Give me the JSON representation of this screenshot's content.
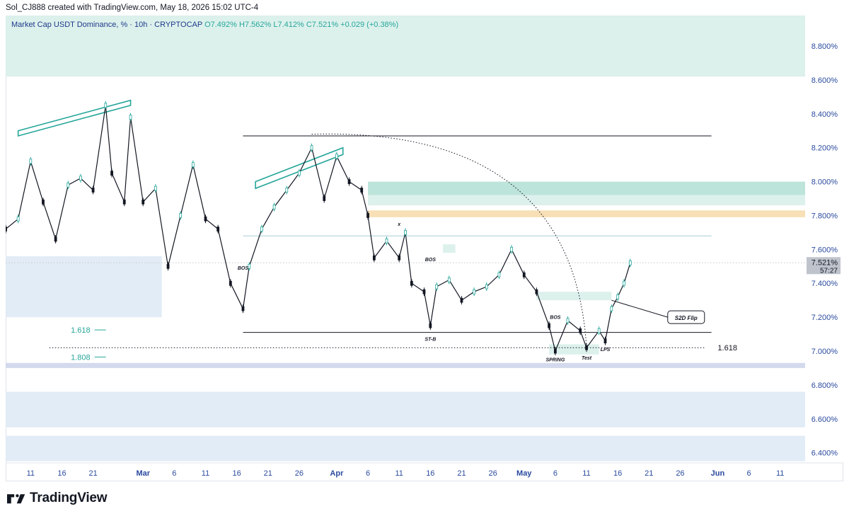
{
  "header": {
    "created_by": "Sol_CJ888 created with TradingView.com, May 18, 2026 15:02 UTC-4"
  },
  "legend": {
    "symbol": "Market Cap USDT Dominance, % · 10h · CRYPTOCAP",
    "open": "O7.492%",
    "high": "H7.562%",
    "low": "L7.412%",
    "close": "C7.521%",
    "change": "+0.029 (+0.38%)"
  },
  "price_badge": {
    "price": "7.521%",
    "countdown": "57:27"
  },
  "footer": {
    "brand": "TradingView"
  },
  "colors": {
    "up": "#26a69a",
    "down": "#131722",
    "zone_teal": "#b2dfd4",
    "zone_blue": "#dde9f5",
    "zone_orange": "#f7d9a8",
    "fib_green": "#26a69a",
    "axis_text": "#2a4a9e"
  },
  "chart_data": {
    "type": "candlestick",
    "y_unit": "%",
    "ylim": [
      6.34,
      8.98
    ],
    "y_ticks": [
      "8.800%",
      "8.600%",
      "8.400%",
      "8.200%",
      "8.000%",
      "7.800%",
      "7.600%",
      "7.400%",
      "7.200%",
      "7.000%",
      "6.800%",
      "6.600%",
      "6.400%"
    ],
    "y_tick_values": [
      8.8,
      8.6,
      8.4,
      8.2,
      8.0,
      7.8,
      7.6,
      7.4,
      7.2,
      7.0,
      6.8,
      6.6,
      6.4
    ],
    "x_range": [
      "2026-02-07",
      "2026-06-15"
    ],
    "x_ticks": [
      {
        "label": "11",
        "date": "2026-02-11"
      },
      {
        "label": "16",
        "date": "2026-02-16"
      },
      {
        "label": "21",
        "date": "2026-02-21"
      },
      {
        "label": "Mar",
        "date": "2026-03-01",
        "month": true
      },
      {
        "label": "6",
        "date": "2026-03-06"
      },
      {
        "label": "11",
        "date": "2026-03-11"
      },
      {
        "label": "16",
        "date": "2026-03-16"
      },
      {
        "label": "21",
        "date": "2026-03-21"
      },
      {
        "label": "26",
        "date": "2026-03-26"
      },
      {
        "label": "Apr",
        "date": "2026-04-01",
        "month": true
      },
      {
        "label": "6",
        "date": "2026-04-06"
      },
      {
        "label": "11",
        "date": "2026-04-11"
      },
      {
        "label": "16",
        "date": "2026-04-16"
      },
      {
        "label": "21",
        "date": "2026-04-21"
      },
      {
        "label": "26",
        "date": "2026-04-26"
      },
      {
        "label": "May",
        "date": "2026-05-01",
        "month": true
      },
      {
        "label": "6",
        "date": "2026-05-06"
      },
      {
        "label": "11",
        "date": "2026-05-11"
      },
      {
        "label": "16",
        "date": "2026-05-16"
      },
      {
        "label": "21",
        "date": "2026-05-21"
      },
      {
        "label": "26",
        "date": "2026-05-26"
      },
      {
        "label": "Jun",
        "date": "2026-06-01",
        "month": true
      },
      {
        "label": "6",
        "date": "2026-06-06"
      },
      {
        "label": "11",
        "date": "2026-06-11"
      }
    ],
    "price_path": [
      [
        "2026-02-07",
        7.72
      ],
      [
        "2026-02-09",
        7.78
      ],
      [
        "2026-02-11",
        8.12
      ],
      [
        "2026-02-13",
        7.88
      ],
      [
        "2026-02-15",
        7.66
      ],
      [
        "2026-02-17",
        7.98
      ],
      [
        "2026-02-19",
        8.02
      ],
      [
        "2026-02-21",
        7.95
      ],
      [
        "2026-02-23",
        8.45
      ],
      [
        "2026-02-24",
        8.05
      ],
      [
        "2026-02-26",
        7.88
      ],
      [
        "2026-02-27",
        8.38
      ],
      [
        "2026-03-01",
        7.88
      ],
      [
        "2026-03-03",
        7.96
      ],
      [
        "2026-03-05",
        7.5
      ],
      [
        "2026-03-07",
        7.8
      ],
      [
        "2026-03-09",
        8.1
      ],
      [
        "2026-03-11",
        7.78
      ],
      [
        "2026-03-13",
        7.72
      ],
      [
        "2026-03-15",
        7.4
      ],
      [
        "2026-03-17",
        7.25
      ],
      [
        "2026-03-18",
        7.5
      ],
      [
        "2026-03-20",
        7.72
      ],
      [
        "2026-03-22",
        7.85
      ],
      [
        "2026-03-24",
        7.95
      ],
      [
        "2026-03-26",
        8.05
      ],
      [
        "2026-03-28",
        8.2
      ],
      [
        "2026-03-30",
        7.9
      ],
      [
        "2026-04-01",
        8.15
      ],
      [
        "2026-04-03",
        8.0
      ],
      [
        "2026-04-05",
        7.95
      ],
      [
        "2026-04-06",
        7.8
      ],
      [
        "2026-04-07",
        7.55
      ],
      [
        "2026-04-09",
        7.65
      ],
      [
        "2026-04-11",
        7.55
      ],
      [
        "2026-04-12",
        7.7
      ],
      [
        "2026-04-13",
        7.4
      ],
      [
        "2026-04-15",
        7.35
      ],
      [
        "2026-04-16",
        7.15
      ],
      [
        "2026-04-17",
        7.38
      ],
      [
        "2026-04-19",
        7.42
      ],
      [
        "2026-04-21",
        7.3
      ],
      [
        "2026-04-23",
        7.35
      ],
      [
        "2026-04-25",
        7.38
      ],
      [
        "2026-04-27",
        7.45
      ],
      [
        "2026-04-29",
        7.6
      ],
      [
        "2026-05-01",
        7.45
      ],
      [
        "2026-05-03",
        7.35
      ],
      [
        "2026-05-05",
        7.15
      ],
      [
        "2026-05-06",
        7.0
      ],
      [
        "2026-05-08",
        7.18
      ],
      [
        "2026-05-10",
        7.12
      ],
      [
        "2026-05-11",
        7.02
      ],
      [
        "2026-05-13",
        7.12
      ],
      [
        "2026-05-14",
        7.06
      ],
      [
        "2026-05-15",
        7.25
      ],
      [
        "2026-05-16",
        7.32
      ],
      [
        "2026-05-17",
        7.4
      ],
      [
        "2026-05-18",
        7.52
      ]
    ],
    "zones": [
      {
        "from": "2026-02-07",
        "to": "2026-06-15",
        "y1": 8.98,
        "y2": 8.62,
        "color": "teal_light"
      },
      {
        "from": "2026-02-07",
        "to": "2026-03-04",
        "y1": 7.56,
        "y2": 7.2,
        "color": "blue"
      },
      {
        "from": "2026-04-06",
        "to": "2026-06-15",
        "y1": 8.0,
        "y2": 7.92,
        "color": "teal"
      },
      {
        "from": "2026-04-06",
        "to": "2026-06-15",
        "y1": 7.92,
        "y2": 7.86,
        "color": "teal_light"
      },
      {
        "from": "2026-04-06",
        "to": "2026-06-15",
        "y1": 7.83,
        "y2": 7.79,
        "color": "orange"
      },
      {
        "from": "2026-04-18",
        "to": "2026-04-20",
        "y1": 7.63,
        "y2": 7.58,
        "color": "teal_light"
      },
      {
        "from": "2026-05-03",
        "to": "2026-05-15",
        "y1": 7.35,
        "y2": 7.3,
        "color": "teal_light"
      },
      {
        "from": "2026-05-05",
        "to": "2026-05-13",
        "y1": 7.04,
        "y2": 6.98,
        "color": "teal_light"
      },
      {
        "from": "2026-02-07",
        "to": "2026-06-15",
        "y1": 6.93,
        "y2": 6.9,
        "color": "lavender"
      },
      {
        "from": "2026-02-07",
        "to": "2026-06-15",
        "y1": 6.76,
        "y2": 6.55,
        "color": "blue"
      },
      {
        "from": "2026-02-07",
        "to": "2026-06-15",
        "y1": 6.5,
        "y2": 6.35,
        "color": "blue"
      }
    ],
    "levels": [
      {
        "y": 8.27,
        "from": "2026-03-17",
        "to": "2026-05-31",
        "style": "solid",
        "color": "#131722"
      },
      {
        "y": 7.11,
        "from": "2026-03-17",
        "to": "2026-05-31",
        "style": "solid",
        "color": "#131722"
      },
      {
        "y": 7.68,
        "from": "2026-03-17",
        "to": "2026-05-31",
        "style": "solid",
        "color": "#a5cbd8"
      },
      {
        "y": 7.02,
        "from": "2026-02-14",
        "to": "2026-05-30",
        "style": "dotted",
        "color": "#131722"
      },
      {
        "y": 7.521,
        "from": "2026-02-07",
        "to": "2026-06-15",
        "style": "dotted",
        "color": "#c5c8d0"
      }
    ],
    "fib_labels": [
      {
        "label": "1.618",
        "y": 7.125,
        "date": "2026-02-21",
        "color": "green"
      },
      {
        "label": "1.808",
        "y": 6.965,
        "date": "2026-02-21",
        "color": "green"
      },
      {
        "label": "1.618",
        "y": 7.02,
        "date": "2026-06-01",
        "color": "dark"
      }
    ],
    "annotations": [
      {
        "text": "BOS",
        "date": "2026-03-17",
        "y": 7.48
      },
      {
        "text": "BOS",
        "date": "2026-04-16",
        "y": 7.53
      },
      {
        "text": "x",
        "date": "2026-04-11",
        "y": 7.74
      },
      {
        "text": "ST-B",
        "date": "2026-04-16",
        "y": 7.06
      },
      {
        "text": "BOS",
        "date": "2026-05-06",
        "y": 7.19
      },
      {
        "text": "SPRING",
        "date": "2026-05-06",
        "y": 6.94
      },
      {
        "text": "Test",
        "date": "2026-05-11",
        "y": 6.95
      },
      {
        "text": "LPS",
        "date": "2026-05-14",
        "y": 7.0
      }
    ],
    "callout": {
      "text": "S2D Flip",
      "date": "2026-05-24",
      "y": 7.2
    },
    "arc": {
      "from_date": "2026-03-28",
      "from_y": 8.28,
      "to_date": "2026-05-11",
      "to_y": 7.02
    },
    "channels": [
      {
        "p1": [
          "2026-02-09",
          8.3
        ],
        "p2": [
          "2026-02-27",
          8.48
        ],
        "p3": [
          "2026-02-27",
          8.45
        ],
        "p4": [
          "2026-02-09",
          8.27
        ]
      },
      {
        "p1": [
          "2026-03-19",
          8.0
        ],
        "p2": [
          "2026-04-02",
          8.2
        ],
        "p3": [
          "2026-04-02",
          8.16
        ],
        "p4": [
          "2026-03-19",
          7.96
        ]
      }
    ]
  }
}
